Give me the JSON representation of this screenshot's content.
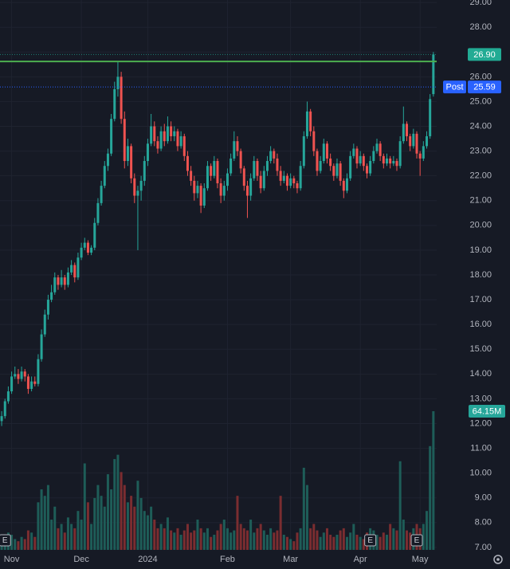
{
  "chart_data": {
    "type": "candlestick",
    "open": [
      12.1,
      12.3,
      12.9,
      13.3,
      13.9,
      14.0,
      13.8,
      14.1,
      13.9,
      13.4,
      13.7,
      13.6,
      14.6,
      15.6,
      16.4,
      17.0,
      17.3,
      17.9,
      17.6,
      17.9,
      17.6,
      18.1,
      18.4,
      17.9,
      18.7,
      19.1,
      19.3,
      18.9,
      19.1,
      20.1,
      20.9,
      21.6,
      22.4,
      22.9,
      24.3,
      25.5,
      26.0,
      24.3,
      22.6,
      23.2,
      21.9,
      21.2,
      21.4,
      21.8,
      22.6,
      23.3,
      24.0,
      23.4,
      23.1,
      23.8,
      23.4,
      24.0,
      23.6,
      23.8,
      23.2,
      23.6,
      22.8,
      22.2,
      21.8,
      21.3,
      21.6,
      20.8,
      21.5,
      22.4,
      22.0,
      22.6,
      21.7,
      21.2,
      21.6,
      22.1,
      22.7,
      23.4,
      23.0,
      22.3,
      21.6,
      21.2,
      21.9,
      22.6,
      22.0,
      21.5,
      22.2,
      22.6,
      23.0,
      22.7,
      22.2,
      21.8,
      22.0,
      21.6,
      21.9,
      21.7,
      21.5,
      22.4,
      23.6,
      24.6,
      23.8,
      23.0,
      22.2,
      22.6,
      23.3,
      22.7,
      22.4,
      22.0,
      22.5,
      21.8,
      21.4,
      21.9,
      22.8,
      23.1,
      22.5,
      22.8,
      22.4,
      22.1,
      22.6,
      23.0,
      23.3,
      22.8,
      22.5,
      22.7,
      22.5,
      22.6,
      22.4,
      23.4,
      24.1,
      23.6,
      23.2,
      23.7,
      22.9,
      22.7,
      23.2,
      23.6,
      25.3
    ],
    "high": [
      12.5,
      13.0,
      13.5,
      14.1,
      14.3,
      14.2,
      14.3,
      14.2,
      14.0,
      13.9,
      13.9,
      14.8,
      15.8,
      16.6,
      17.2,
      17.6,
      18.1,
      18.0,
      18.2,
      18.0,
      18.3,
      18.6,
      18.5,
      18.9,
      19.3,
      19.5,
      19.4,
      19.2,
      20.3,
      21.1,
      21.8,
      22.6,
      23.1,
      24.5,
      25.8,
      26.6,
      26.2,
      24.6,
      23.5,
      23.3,
      22.1,
      21.6,
      22.0,
      22.8,
      23.5,
      24.5,
      24.2,
      23.6,
      24.0,
      24.1,
      24.4,
      24.2,
      24.0,
      23.9,
      23.8,
      23.7,
      23.0,
      22.4,
      22.0,
      21.8,
      21.7,
      21.7,
      22.6,
      22.5,
      22.8,
      22.7,
      21.9,
      21.8,
      22.3,
      22.9,
      23.8,
      23.6,
      23.1,
      22.4,
      21.8,
      22.1,
      22.8,
      22.7,
      22.2,
      22.4,
      22.8,
      23.2,
      23.1,
      22.9,
      22.4,
      22.2,
      22.1,
      22.1,
      22.0,
      21.8,
      22.6,
      23.8,
      25.0,
      24.7,
      24.0,
      23.1,
      22.8,
      23.5,
      23.4,
      22.9,
      22.5,
      22.7,
      22.6,
      21.9,
      22.1,
      23.0,
      23.3,
      23.2,
      23.0,
      22.9,
      22.5,
      22.8,
      23.2,
      23.5,
      23.4,
      22.9,
      22.9,
      22.8,
      22.8,
      22.7,
      23.6,
      24.8,
      24.2,
      23.7,
      23.9,
      23.8,
      23.0,
      23.4,
      23.8,
      25.3,
      27.0
    ],
    "low": [
      11.9,
      12.2,
      12.8,
      13.2,
      13.8,
      13.6,
      13.7,
      13.7,
      13.2,
      13.3,
      13.5,
      13.5,
      14.5,
      15.5,
      16.2,
      16.9,
      17.2,
      17.4,
      17.5,
      17.4,
      17.5,
      18.0,
      17.7,
      17.8,
      18.6,
      19.0,
      18.8,
      18.8,
      19.0,
      20.0,
      20.8,
      21.5,
      22.2,
      22.8,
      24.2,
      25.2,
      24.1,
      22.3,
      22.4,
      21.7,
      20.9,
      19.0,
      21.0,
      21.6,
      22.4,
      23.2,
      23.2,
      22.9,
      23.0,
      23.2,
      23.3,
      23.4,
      23.4,
      23.0,
      23.1,
      22.6,
      22.0,
      21.6,
      21.0,
      21.1,
      20.5,
      20.7,
      21.4,
      21.8,
      21.9,
      21.5,
      20.9,
      21.0,
      21.4,
      22.0,
      22.6,
      22.8,
      22.1,
      21.4,
      20.3,
      21.0,
      21.8,
      21.8,
      21.3,
      21.4,
      22.0,
      22.5,
      22.5,
      22.0,
      21.6,
      21.7,
      21.4,
      21.5,
      21.5,
      21.3,
      21.4,
      22.3,
      23.5,
      23.6,
      22.8,
      22.0,
      22.1,
      22.5,
      22.5,
      22.2,
      21.8,
      21.9,
      21.6,
      21.1,
      21.3,
      21.8,
      22.7,
      22.3,
      22.4,
      22.2,
      21.9,
      22.0,
      22.5,
      22.9,
      22.6,
      22.3,
      22.4,
      22.3,
      22.4,
      22.2,
      22.3,
      23.3,
      23.4,
      23.0,
      23.1,
      22.7,
      22.0,
      22.6,
      23.1,
      23.5,
      25.2
    ],
    "close": [
      12.3,
      12.9,
      13.3,
      13.9,
      14.0,
      13.8,
      14.1,
      13.9,
      13.4,
      13.7,
      13.6,
      14.6,
      15.6,
      16.4,
      17.0,
      17.3,
      17.9,
      17.6,
      17.9,
      17.6,
      18.1,
      18.4,
      17.9,
      18.7,
      19.1,
      19.3,
      18.9,
      19.1,
      20.1,
      20.9,
      21.6,
      22.4,
      22.9,
      24.3,
      25.5,
      26.0,
      24.3,
      22.6,
      23.2,
      21.9,
      21.2,
      21.4,
      21.8,
      22.6,
      23.3,
      24.0,
      23.4,
      23.1,
      23.8,
      23.4,
      24.0,
      23.6,
      23.8,
      23.2,
      23.6,
      22.8,
      22.2,
      21.8,
      21.3,
      21.6,
      20.8,
      21.5,
      22.4,
      22.0,
      22.6,
      21.7,
      21.2,
      21.6,
      22.1,
      22.7,
      23.4,
      23.0,
      22.3,
      21.6,
      21.2,
      21.9,
      22.6,
      22.0,
      21.5,
      22.2,
      22.6,
      23.0,
      22.7,
      22.2,
      21.8,
      22.0,
      21.6,
      21.9,
      21.7,
      21.5,
      22.4,
      23.6,
      24.6,
      23.8,
      23.0,
      22.2,
      22.6,
      23.3,
      22.7,
      22.4,
      22.0,
      22.5,
      21.8,
      21.4,
      21.9,
      22.8,
      23.1,
      22.5,
      22.8,
      22.4,
      22.1,
      22.6,
      23.0,
      23.3,
      22.8,
      22.5,
      22.7,
      22.5,
      22.6,
      22.4,
      23.4,
      24.1,
      23.6,
      23.2,
      23.7,
      22.9,
      22.7,
      23.2,
      23.6,
      25.1,
      26.9
    ],
    "volume": [
      6,
      5,
      8,
      7,
      5,
      4,
      6,
      5,
      9,
      8,
      6,
      22,
      28,
      25,
      30,
      14,
      20,
      10,
      12,
      8,
      15,
      12,
      10,
      18,
      14,
      40,
      22,
      12,
      24,
      30,
      25,
      20,
      35,
      28,
      42,
      44,
      36,
      30,
      22,
      25,
      20,
      32,
      24,
      18,
      16,
      20,
      14,
      10,
      12,
      10,
      15,
      9,
      8,
      10,
      7,
      9,
      12,
      8,
      9,
      14,
      10,
      8,
      10,
      6,
      7,
      9,
      12,
      14,
      10,
      8,
      9,
      25,
      12,
      10,
      9,
      14,
      8,
      10,
      12,
      9,
      7,
      10,
      8,
      9,
      25,
      7,
      6,
      5,
      4,
      8,
      10,
      38,
      30,
      10,
      12,
      9,
      6,
      8,
      10,
      7,
      6,
      7,
      9,
      10,
      6,
      8,
      12,
      7,
      6,
      5,
      8,
      10,
      9,
      7,
      6,
      8,
      7,
      12,
      10,
      9,
      41,
      14,
      9,
      8,
      10,
      12,
      10,
      12,
      18,
      48,
      64.15
    ],
    "volume_label": "64.15M",
    "up_color": "#26a69a",
    "down_color": "#ef5350",
    "up_volume_color": "#1e5d58",
    "down_volume_color": "#7b2d30",
    "xlim": [
      -0.5,
      131
    ],
    "xticks": [
      {
        "value": 3,
        "label": "Nov"
      },
      {
        "value": 24,
        "label": "Dec"
      },
      {
        "value": 44,
        "label": "2024"
      },
      {
        "value": 68,
        "label": "Feb"
      },
      {
        "value": 87,
        "label": "Mar"
      },
      {
        "value": 108,
        "label": "Apr"
      },
      {
        "value": 126,
        "label": "May"
      }
    ],
    "ylim": [
      6.9,
      29.1
    ],
    "yticks": [
      {
        "value": 7,
        "label": "7.00"
      },
      {
        "value": 8,
        "label": "8.00"
      },
      {
        "value": 9,
        "label": "9.00"
      },
      {
        "value": 10,
        "label": "10.00"
      },
      {
        "value": 11,
        "label": "11.00"
      },
      {
        "value": 12,
        "label": "12.00"
      },
      {
        "value": 13,
        "label": "13.00"
      },
      {
        "value": 14,
        "label": "14.00"
      },
      {
        "value": 15,
        "label": "15.00"
      },
      {
        "value": 16,
        "label": "16.00"
      },
      {
        "value": 17,
        "label": "17.00"
      },
      {
        "value": 18,
        "label": "18.00"
      },
      {
        "value": 19,
        "label": "19.00"
      },
      {
        "value": 20,
        "label": "20.00"
      },
      {
        "value": 21,
        "label": "21.00"
      },
      {
        "value": 22,
        "label": "22.00"
      },
      {
        "value": 23,
        "label": "23.00"
      },
      {
        "value": 24,
        "label": "24.00"
      },
      {
        "value": 25,
        "label": "25.00"
      },
      {
        "value": 26,
        "label": "26.00"
      },
      {
        "value": 27,
        "label": "27.00"
      },
      {
        "value": 28,
        "label": "28.00"
      },
      {
        "value": 29,
        "label": "29.00"
      }
    ],
    "grid": true,
    "hline": {
      "value": 26.62,
      "color": "#4caf50"
    },
    "last_price": {
      "value": 26.9,
      "label": "26.90",
      "color": "#22ab94"
    },
    "post": {
      "name": "Post",
      "value": 25.59,
      "label": "25.59",
      "color": "#2962ff"
    },
    "events": [
      {
        "x": 1,
        "label": "E"
      },
      {
        "x": 111,
        "label": "E"
      },
      {
        "x": 125,
        "label": "E"
      }
    ]
  }
}
